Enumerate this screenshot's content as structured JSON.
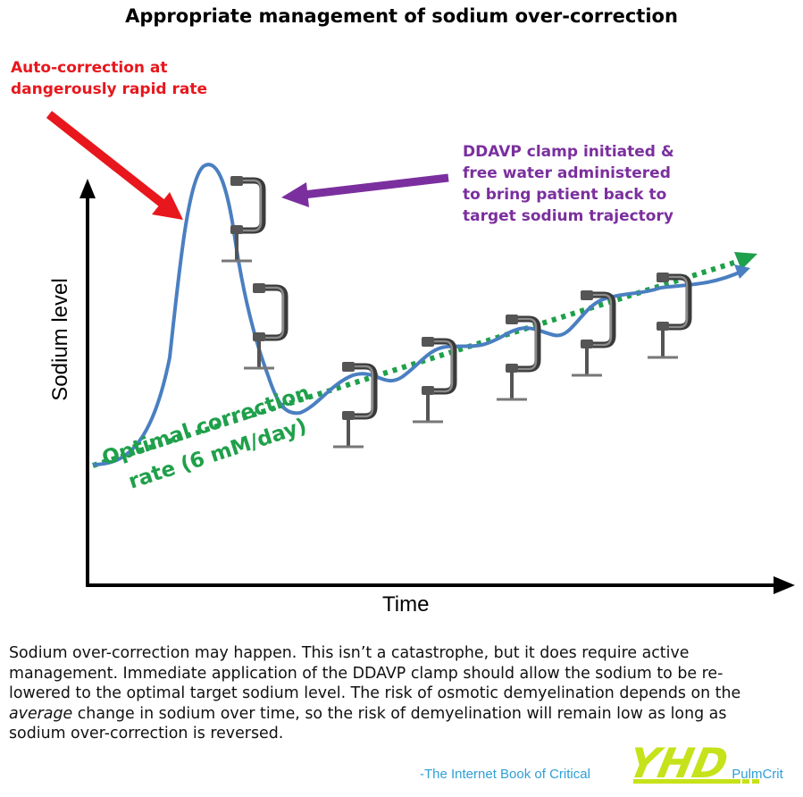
{
  "title": "Appropriate management of sodium over-correction",
  "annotations": {
    "auto_correction": [
      "Auto-correction at",
      "dangerously rapid rate"
    ],
    "ddavp": [
      "DDAVP clamp initiated &",
      "free water administered",
      "to bring patient back to",
      "target sodium trajectory"
    ],
    "optimal": [
      "Optimal correction",
      "rate (6 mM/day)"
    ]
  },
  "axes": {
    "y_label": "Sodium level",
    "x_label": "Time"
  },
  "colors": {
    "sodium_curve": "#4a7fc1",
    "optimal_line": "#1fa04a",
    "red_arrow": "#e8171d",
    "purple_arrow": "#7b2f9e"
  },
  "icons": {
    "clamp": "c-clamp-icon"
  },
  "caption": {
    "before_em": "Sodium over-correction may happen.  This isn’t a catastrophe, but it does require active management.  Immediate application of the DDAVP clamp should allow the sodium to be re-lowered to the optimal target sodium level.  The risk of osmotic demyelination depends on the ",
    "em": "average",
    "after_em": " change in sodium over time, so the risk of demyelination will remain low as long as sodium over-correction is reversed."
  },
  "source": "-The Internet Book of Critical",
  "source_tail": "PulmCrit",
  "watermark_text": "YHD"
}
